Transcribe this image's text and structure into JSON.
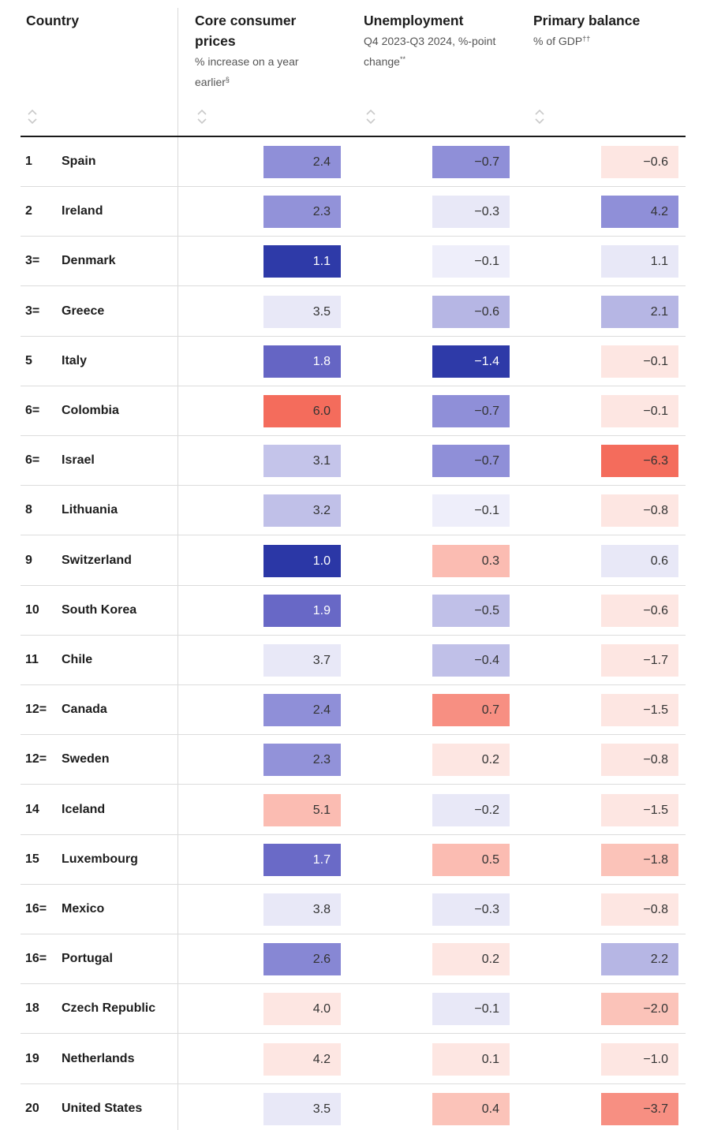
{
  "chart_data": {
    "type": "table",
    "columns": [
      {
        "key": "country",
        "title": "Country",
        "subtitle": "",
        "footnote": ""
      },
      {
        "key": "core",
        "title": "Core consumer prices",
        "subtitle": "% increase on a year earlier",
        "footnote": "§"
      },
      {
        "key": "unemp",
        "title": "Unemployment",
        "subtitle": "Q4 2023-Q3 2024, %-point change",
        "footnote": "**"
      },
      {
        "key": "primary",
        "title": "Primary balance",
        "subtitle": "% of GDP",
        "footnote": "††"
      }
    ],
    "rows": [
      {
        "rank": "1",
        "country": "Spain",
        "core": "2.4",
        "unemp": "−0.7",
        "primary": "−0.6"
      },
      {
        "rank": "2",
        "country": "Ireland",
        "core": "2.3",
        "unemp": "−0.3",
        "primary": "4.2"
      },
      {
        "rank": "3=",
        "country": "Denmark",
        "core": "1.1",
        "unemp": "−0.1",
        "primary": "1.1"
      },
      {
        "rank": "3=",
        "country": "Greece",
        "core": "3.5",
        "unemp": "−0.6",
        "primary": "2.1"
      },
      {
        "rank": "5",
        "country": "Italy",
        "core": "1.8",
        "unemp": "−1.4",
        "primary": "−0.1"
      },
      {
        "rank": "6=",
        "country": "Colombia",
        "core": "6.0",
        "unemp": "−0.7",
        "primary": "−0.1"
      },
      {
        "rank": "6=",
        "country": "Israel",
        "core": "3.1",
        "unemp": "−0.7",
        "primary": "−6.3"
      },
      {
        "rank": "8",
        "country": "Lithuania",
        "core": "3.2",
        "unemp": "−0.1",
        "primary": "−0.8"
      },
      {
        "rank": "9",
        "country": "Switzerland",
        "core": "1.0",
        "unemp": "0.3",
        "primary": "0.6"
      },
      {
        "rank": "10",
        "country": "South Korea",
        "core": "1.9",
        "unemp": "−0.5",
        "primary": "−0.6"
      },
      {
        "rank": "11",
        "country": "Chile",
        "core": "3.7",
        "unemp": "−0.4",
        "primary": "−1.7"
      },
      {
        "rank": "12=",
        "country": "Canada",
        "core": "2.4",
        "unemp": "0.7",
        "primary": "−1.5"
      },
      {
        "rank": "12=",
        "country": "Sweden",
        "core": "2.3",
        "unemp": "0.2",
        "primary": "−0.8"
      },
      {
        "rank": "14",
        "country": "Iceland",
        "core": "5.1",
        "unemp": "−0.2",
        "primary": "−1.5"
      },
      {
        "rank": "15",
        "country": "Luxembourg",
        "core": "1.7",
        "unemp": "0.5",
        "primary": "−1.8"
      },
      {
        "rank": "16=",
        "country": "Mexico",
        "core": "3.8",
        "unemp": "−0.3",
        "primary": "−0.8"
      },
      {
        "rank": "16=",
        "country": "Portugal",
        "core": "2.6",
        "unemp": "0.2",
        "primary": "2.2"
      },
      {
        "rank": "18",
        "country": "Czech Republic",
        "core": "4.0",
        "unemp": "−0.1",
        "primary": "−2.0"
      },
      {
        "rank": "19",
        "country": "Netherlands",
        "core": "4.2",
        "unemp": "0.1",
        "primary": "−1.0"
      },
      {
        "rank": "20",
        "country": "United States",
        "core": "3.5",
        "unemp": "0.4",
        "primary": "−3.7"
      }
    ]
  },
  "colors": {
    "core": [
      "#8f8fd8",
      "#9292d9",
      "#2e3aa8",
      "#e8e8f7",
      "#6565c4",
      "#f46c5c",
      "#c4c4ea",
      "#c0c0e8",
      "#2b37a6",
      "#6868c6",
      "#e8e8f7",
      "#8f8fd8",
      "#9292d9",
      "#fbbcb2",
      "#6a6ac7",
      "#e8e8f7",
      "#8787d4",
      "#fde6e2",
      "#fde6e2",
      "#e8e8f7"
    ],
    "unemp": [
      "#8f8fd8",
      "#e8e8f7",
      "#eeeefa",
      "#b6b6e4",
      "#2e3aa8",
      "#8f8fd8",
      "#8f8fd8",
      "#eeeefa",
      "#fbbcb2",
      "#c0c0e8",
      "#c0c0e8",
      "#f78f82",
      "#fde6e2",
      "#e8e8f7",
      "#fbbcb2",
      "#e8e8f7",
      "#fde6e2",
      "#e8e8f7",
      "#fde6e2",
      "#fbc3b9"
    ],
    "primary": [
      "#fde6e2",
      "#8f8fd8",
      "#e8e8f7",
      "#b6b6e4",
      "#fde6e2",
      "#fde6e2",
      "#f46c5c",
      "#fde6e2",
      "#e8e8f7",
      "#fde6e2",
      "#fde6e2",
      "#fde6e2",
      "#fde6e2",
      "#fde6e2",
      "#fbc3b9",
      "#fde6e2",
      "#b6b6e4",
      "#fbc3b9",
      "#fde6e2",
      "#f78f82"
    ],
    "dark_text_on": [
      "#2e3aa8",
      "#2b37a6",
      "#6565c4",
      "#6868c6",
      "#6a6ac7"
    ]
  }
}
